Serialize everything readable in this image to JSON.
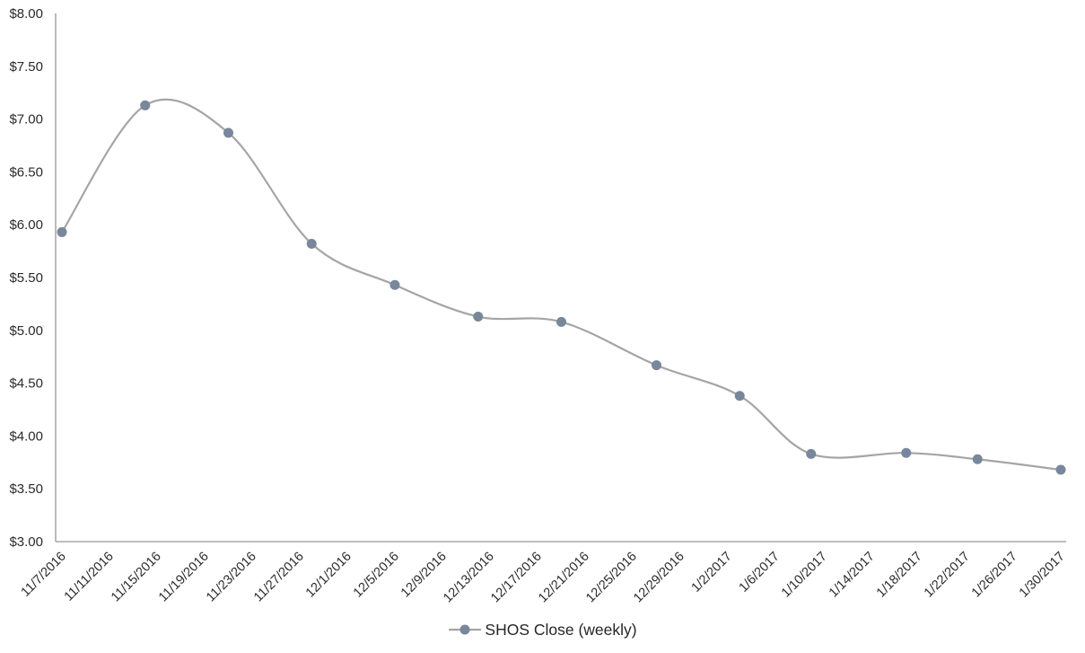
{
  "chart": {
    "title": "",
    "legend_label": "SHOS Close (weekly)",
    "colors": {
      "background": "#ffffff",
      "line": "#a5a5a5",
      "marker": "#78879b",
      "axis": "#969696",
      "tick_label": "#2b2b2b",
      "legend_text": "#262626"
    }
  },
  "chart_data": {
    "type": "line",
    "smooth": true,
    "grid": false,
    "title": "",
    "xlabel": "",
    "ylabel": "",
    "legend": {
      "position": "bottom",
      "entries": [
        "SHOS Close (weekly)"
      ]
    },
    "series": [
      {
        "name": "SHOS Close (weekly)",
        "points": [
          {
            "date": "11/7/2016",
            "day": 0,
            "value": 5.93
          },
          {
            "date": "11/14/2016",
            "day": 7,
            "value": 7.13
          },
          {
            "date": "11/21/2016",
            "day": 14,
            "value": 6.87
          },
          {
            "date": "11/28/2016",
            "day": 21,
            "value": 5.82
          },
          {
            "date": "12/5/2016",
            "day": 28,
            "value": 5.43
          },
          {
            "date": "12/12/2016",
            "day": 35,
            "value": 5.13
          },
          {
            "date": "12/19/2016",
            "day": 42,
            "value": 5.08
          },
          {
            "date": "12/27/2016",
            "day": 50,
            "value": 4.67
          },
          {
            "date": "1/3/2017",
            "day": 57,
            "value": 4.38
          },
          {
            "date": "1/9/2017",
            "day": 63,
            "value": 3.83
          },
          {
            "date": "1/17/2017",
            "day": 71,
            "value": 3.84
          },
          {
            "date": "1/23/2017",
            "day": 77,
            "value": 3.78
          },
          {
            "date": "1/30/2017",
            "day": 84,
            "value": 3.68
          }
        ]
      }
    ],
    "x_axis": {
      "type": "date",
      "range_days": [
        0,
        84
      ],
      "tick_days": [
        0,
        4,
        8,
        12,
        16,
        20,
        24,
        28,
        32,
        36,
        40,
        44,
        48,
        52,
        56,
        60,
        64,
        68,
        72,
        76,
        80,
        84
      ],
      "tick_labels": [
        "11/7/2016",
        "11/11/2016",
        "11/15/2016",
        "11/19/2016",
        "11/23/2016",
        "11/27/2016",
        "12/1/2016",
        "12/5/2016",
        "12/9/2016",
        "12/13/2016",
        "12/17/2016",
        "12/21/2016",
        "12/25/2016",
        "12/29/2016",
        "1/2/2017",
        "1/6/2017",
        "1/10/2017",
        "1/14/2017",
        "1/18/2017",
        "1/22/2017",
        "1/26/2017",
        "1/30/2017"
      ],
      "label_rotation_deg": -45
    },
    "y_axis": {
      "min": 3.0,
      "max": 8.0,
      "step": 0.5,
      "format": "$0.00",
      "tick_values": [
        8.0,
        7.5,
        7.0,
        6.5,
        6.0,
        5.5,
        5.0,
        4.5,
        4.0,
        3.5,
        3.0
      ],
      "tick_labels": [
        "$8.00",
        "$7.50",
        "$7.00",
        "$6.50",
        "$6.00",
        "$5.50",
        "$5.00",
        "$4.50",
        "$4.00",
        "$3.50",
        "$3.00"
      ]
    }
  }
}
